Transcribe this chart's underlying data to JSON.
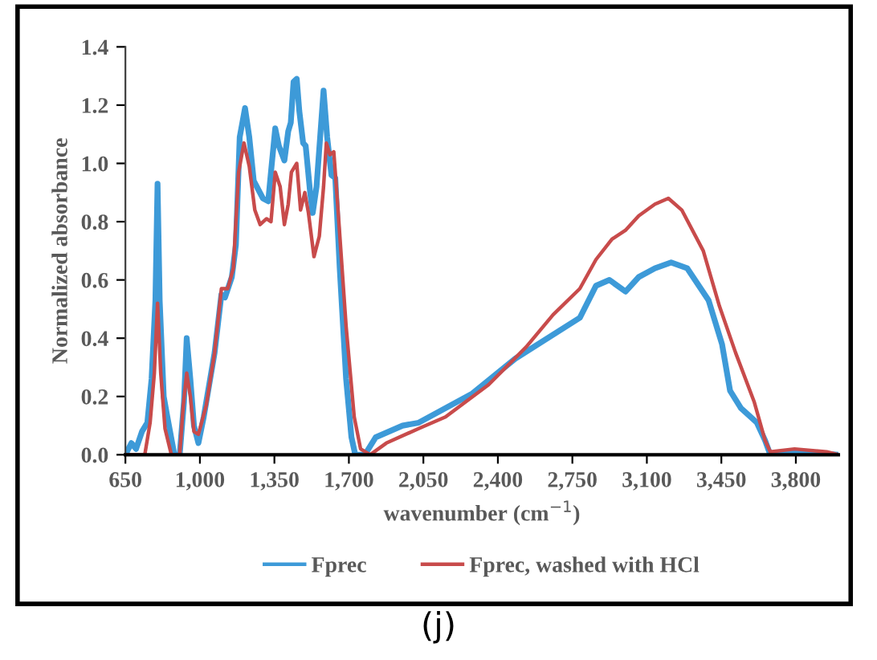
{
  "chart_data": {
    "type": "line",
    "xlabel": "wavenumber (cm$^{−1}$)",
    "ylabel": "Normalized absorbance",
    "annotations": [
      "(j)"
    ],
    "xlim": [
      650,
      4000
    ],
    "ylim": [
      0,
      1.4
    ],
    "xticks": [
      650,
      {
        "value": 1000,
        "label": "1,000"
      },
      {
        "value": 1350,
        "label": "1,350"
      },
      {
        "value": 1700,
        "label": "1,700"
      },
      {
        "value": 2050,
        "label": "2,050"
      },
      {
        "value": 2400,
        "label": "2,400"
      },
      {
        "value": 2750,
        "label": "2,750"
      },
      {
        "value": 3100,
        "label": "3,100"
      },
      {
        "value": 3450,
        "label": "3,450"
      },
      {
        "value": 3800,
        "label": "3,800"
      }
    ],
    "yticks": [
      {
        "value": 0,
        "label": "0.0"
      },
      {
        "value": 0.2,
        "label": "0.2"
      },
      {
        "value": 0.4,
        "label": "0.4"
      },
      {
        "value": 0.6,
        "label": "0.6"
      },
      {
        "value": 0.8,
        "label": "0.8"
      },
      {
        "value": 1.0,
        "label": "1.0"
      },
      {
        "value": 1.2,
        "label": "1.2"
      },
      {
        "value": 1.4,
        "label": "1.4"
      }
    ],
    "grid": false,
    "legend": "bottom",
    "marker": "none",
    "line_style": "solid",
    "series": [
      {
        "name": "Fprec",
        "color": "#3d9ad8",
        "x": [
          650,
          678,
          700,
          728,
          753,
          773,
          791,
          801,
          811,
          830,
          847,
          880,
          905,
          925,
          938,
          955,
          972,
          993,
          1018,
          1069,
          1101,
          1118,
          1150,
          1169,
          1187,
          1212,
          1232,
          1253,
          1296,
          1321,
          1334,
          1354,
          1371,
          1397,
          1415,
          1427,
          1440,
          1455,
          1467,
          1485,
          1497,
          1518,
          1530,
          1548,
          1565,
          1581,
          1598,
          1618,
          1636,
          1657,
          1687,
          1712,
          1730,
          1775,
          1826,
          1952,
          2028,
          2280,
          2482,
          2785,
          2861,
          2924,
          3000,
          3062,
          3138,
          3214,
          3290,
          3390,
          3453,
          3491,
          3542,
          3617,
          3655,
          3680,
          3800,
          4000
        ],
        "values": [
          0,
          0.04,
          0.02,
          0.08,
          0.11,
          0.26,
          0.53,
          0.93,
          0.53,
          0.2,
          0.13,
          0,
          0,
          0.18,
          0.4,
          0.26,
          0.1,
          0.04,
          0.13,
          0.35,
          0.55,
          0.54,
          0.61,
          0.72,
          1.09,
          1.19,
          1.09,
          0.94,
          0.88,
          0.87,
          0.97,
          1.12,
          1.06,
          1.01,
          1.11,
          1.14,
          1.28,
          1.29,
          1.18,
          1.07,
          1.06,
          0.9,
          0.83,
          0.92,
          1.09,
          1.25,
          1.09,
          0.96,
          0.95,
          0.64,
          0.26,
          0.06,
          0,
          0,
          0.06,
          0.1,
          0.11,
          0.21,
          0.33,
          0.47,
          0.58,
          0.6,
          0.56,
          0.61,
          0.64,
          0.66,
          0.64,
          0.53,
          0.38,
          0.22,
          0.16,
          0.11,
          0.05,
          0,
          0.01,
          0
        ]
      },
      {
        "name": "Fprec, washed with HCl",
        "color": "#c84b4b",
        "x": [
          650,
          741,
          766,
          786,
          801,
          816,
          836,
          866,
          905,
          922,
          938,
          955,
          972,
          993,
          1030,
          1069,
          1101,
          1131,
          1157,
          1182,
          1207,
          1232,
          1258,
          1283,
          1313,
          1334,
          1354,
          1377,
          1397,
          1415,
          1430,
          1455,
          1473,
          1493,
          1510,
          1536,
          1561,
          1581,
          1594,
          1611,
          1629,
          1649,
          1687,
          1725,
          1755,
          1800,
          1876,
          2028,
          2154,
          2356,
          2533,
          2659,
          2785,
          2861,
          2936,
          2999,
          3062,
          3138,
          3201,
          3264,
          3365,
          3441,
          3517,
          3605,
          3655,
          3680,
          3794,
          3945,
          4000
        ],
        "values": [
          0,
          0,
          0.11,
          0.28,
          0.52,
          0.28,
          0.09,
          0,
          0,
          0.17,
          0.28,
          0.2,
          0.08,
          0.07,
          0.17,
          0.35,
          0.57,
          0.57,
          0.64,
          0.97,
          1.07,
          0.99,
          0.84,
          0.79,
          0.81,
          0.8,
          0.97,
          0.92,
          0.79,
          0.86,
          0.97,
          1.0,
          0.84,
          0.9,
          0.83,
          0.68,
          0.75,
          0.92,
          1.07,
          1.03,
          1.04,
          0.84,
          0.44,
          0.13,
          0.02,
          0,
          0.04,
          0.09,
          0.13,
          0.24,
          0.37,
          0.48,
          0.57,
          0.67,
          0.74,
          0.77,
          0.82,
          0.86,
          0.88,
          0.84,
          0.7,
          0.51,
          0.35,
          0.18,
          0.05,
          0.01,
          0.02,
          0.01,
          0
        ]
      }
    ]
  }
}
